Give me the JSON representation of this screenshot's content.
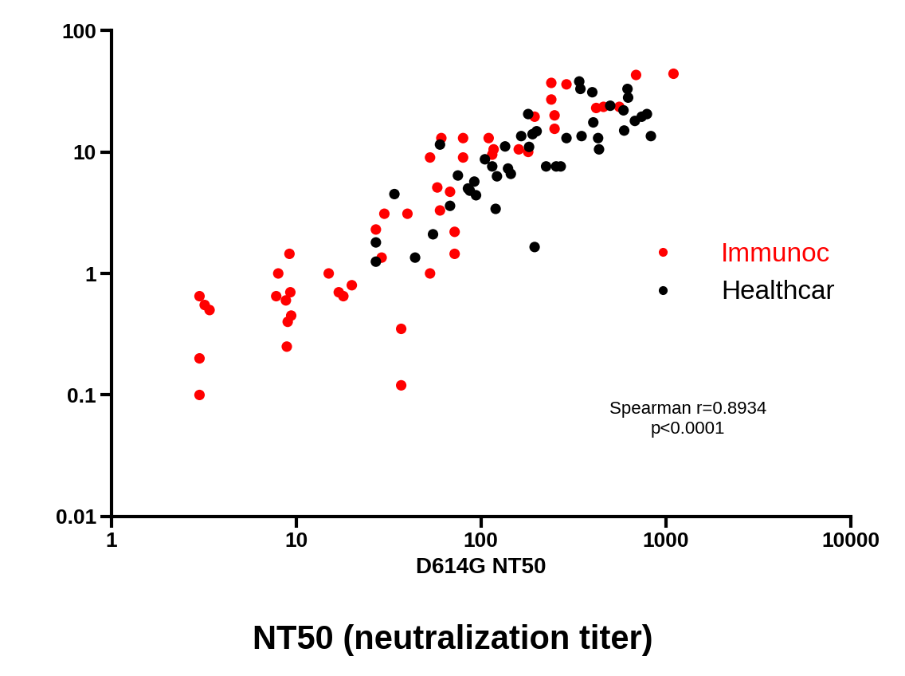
{
  "chart_data": {
    "type": "scatter",
    "title": "NT50 (neutralization titer)",
    "x_label": "D614G NT50",
    "annotations": [
      "Spearman r=0.8934",
      "p<0.0001"
    ],
    "log": true,
    "grid": false,
    "legend": "center right",
    "xlim": [
      1,
      10000
    ],
    "xticks": [
      1,
      10,
      100,
      1000,
      10000
    ],
    "ylim": [
      0.01,
      100
    ],
    "yticks": [
      0.01,
      0.1,
      1,
      10,
      100
    ],
    "series": [
      {
        "name": "Immunoc",
        "color": "#ff0000",
        "marker": "o",
        "x": [
          3,
          3.2,
          3.4,
          3,
          3,
          8,
          7.8,
          9.2,
          9.3,
          8.8,
          9.4,
          9.0,
          8.9,
          15,
          17,
          18,
          20,
          27,
          30,
          29,
          37,
          37,
          40,
          53,
          53,
          58,
          60,
          61,
          68,
          72,
          72,
          80,
          80,
          110,
          115,
          117,
          160,
          180,
          195,
          240,
          240,
          250,
          250,
          290,
          420,
          460,
          560,
          690,
          1100
        ],
        "y": [
          0.65,
          0.55,
          0.5,
          0.2,
          0.1,
          1.0,
          0.65,
          1.45,
          0.7,
          0.6,
          0.45,
          0.4,
          0.25,
          1.0,
          0.7,
          0.65,
          0.8,
          2.3,
          3.1,
          1.35,
          0.35,
          0.12,
          3.1,
          1.0,
          9.0,
          5.1,
          3.3,
          13,
          4.7,
          2.2,
          1.45,
          13,
          9.0,
          13,
          9.5,
          10.5,
          10.5,
          10.0,
          19.5,
          37,
          27,
          20,
          15.5,
          36,
          23,
          23.5,
          23.5,
          43,
          44
        ]
      },
      {
        "name": "Healthcar",
        "color": "#000000",
        "marker": "o",
        "x": [
          27,
          27,
          34,
          44,
          55,
          60,
          68,
          75,
          85,
          87,
          92,
          94,
          105,
          115,
          120,
          122,
          135,
          140,
          145,
          165,
          180,
          182,
          190,
          195,
          200,
          225,
          255,
          270,
          290,
          340,
          345,
          350,
          400,
          405,
          430,
          435,
          500,
          590,
          595,
          620,
          625,
          680,
          740,
          790,
          830
        ],
        "y": [
          1.25,
          1.8,
          4.5,
          1.35,
          2.1,
          11.5,
          3.6,
          6.4,
          5.0,
          4.8,
          5.7,
          4.4,
          8.7,
          7.6,
          3.4,
          6.3,
          11.1,
          7.3,
          6.6,
          13.5,
          20.5,
          11.0,
          14,
          1.65,
          14.8,
          7.6,
          7.6,
          7.6,
          13,
          38,
          33,
          13.5,
          31,
          17.5,
          13,
          10.5,
          24,
          22,
          15,
          33,
          28,
          18,
          19.5,
          20.5,
          13.5
        ]
      }
    ]
  }
}
